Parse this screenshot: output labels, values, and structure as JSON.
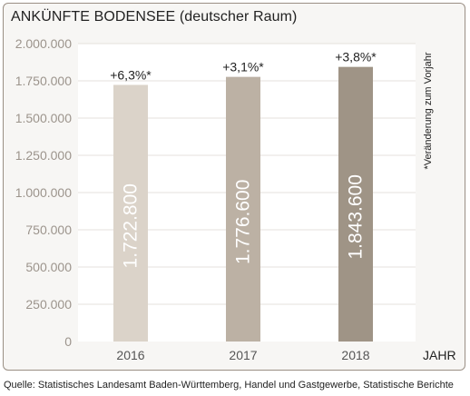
{
  "title": "ANKÜNFTE BODENSEE (deutscher Raum)",
  "source": "Quelle: Statistisches Landesamt Baden-Württemberg, Handel und Gastgewerbe, Statistische Berichte",
  "colors": {
    "frame_border": "#9a8f84",
    "background": "#f7f6f4",
    "plot_background": "#ffffff",
    "tick_label": "#9c948c",
    "bars": [
      "#dbd3c9",
      "#bcb1a4",
      "#9f9486"
    ]
  },
  "chart_data": {
    "type": "bar",
    "categories": [
      "2016",
      "2017",
      "2018"
    ],
    "values": [
      1722800,
      1776600,
      1843600
    ],
    "bar_labels": [
      "1.722.800",
      "1.776.600",
      "1.843.600"
    ],
    "change_labels": [
      "+6,3%*",
      "+3,1%*",
      "+3,8%*"
    ],
    "xlabel": "JAHR",
    "ylabel": "",
    "ylim": [
      0,
      2000000
    ],
    "yticks": [
      0,
      250000,
      500000,
      750000,
      1000000,
      1250000,
      1500000,
      1750000,
      2000000
    ],
    "ytick_labels": [
      "0",
      "250.000",
      "500.000",
      "750.000",
      "1.000.000",
      "1.250.000",
      "1.500.000",
      "1.750.000",
      "2.000.000"
    ],
    "grid": true,
    "side_note": "*Veränderung zum Vorjahr"
  }
}
